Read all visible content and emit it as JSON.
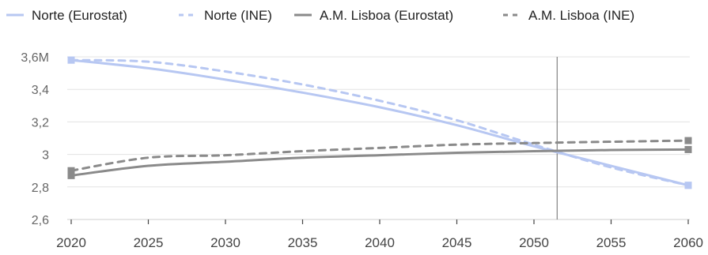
{
  "chart_data": {
    "type": "line",
    "title": "",
    "xlabel": "",
    "ylabel": "",
    "x_ticks": [
      "2020",
      "2025",
      "2030",
      "2035",
      "2040",
      "2045",
      "2050",
      "2055",
      "2060"
    ],
    "y_ticks": [
      "2,6",
      "2,8",
      "3",
      "3,2",
      "3,4",
      "3,6M"
    ],
    "xlim": [
      2020,
      2060
    ],
    "ylim": [
      2.6,
      3.6
    ],
    "grid": "horizontal",
    "legend_position": "top",
    "vertical_marker_x": 2051.5,
    "series": [
      {
        "name": "Norte (Eurostat)",
        "color": "#b7c7f2",
        "dashed": false,
        "x": [
          2020,
          2025,
          2030,
          2035,
          2040,
          2045,
          2050,
          2055,
          2060
        ],
        "y": [
          3.58,
          3.53,
          3.46,
          3.38,
          3.29,
          3.18,
          3.05,
          2.93,
          2.81
        ]
      },
      {
        "name": "Norte (INE)",
        "color": "#b7c7f2",
        "dashed": true,
        "x": [
          2020,
          2025,
          2030,
          2035,
          2040,
          2045,
          2050,
          2055,
          2060
        ],
        "y": [
          3.58,
          3.57,
          3.51,
          3.43,
          3.33,
          3.21,
          3.06,
          2.92,
          2.81
        ]
      },
      {
        "name": "A.M. Lisboa (Eurostat)",
        "color": "#8a8a8a",
        "dashed": false,
        "x": [
          2020,
          2025,
          2030,
          2035,
          2040,
          2045,
          2050,
          2055,
          2060
        ],
        "y": [
          2.87,
          2.93,
          2.955,
          2.98,
          2.995,
          3.01,
          3.02,
          3.027,
          3.03
        ]
      },
      {
        "name": "A.M. Lisboa (INE)",
        "color": "#8a8a8a",
        "dashed": true,
        "x": [
          2020,
          2025,
          2030,
          2035,
          2040,
          2045,
          2050,
          2055,
          2060
        ],
        "y": [
          2.9,
          2.98,
          2.995,
          3.02,
          3.04,
          3.06,
          3.07,
          3.078,
          3.085
        ]
      }
    ]
  }
}
